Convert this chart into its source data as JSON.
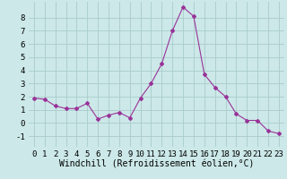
{
  "x": [
    0,
    1,
    2,
    3,
    4,
    5,
    6,
    7,
    8,
    9,
    10,
    11,
    12,
    13,
    14,
    15,
    16,
    17,
    18,
    19,
    20,
    21,
    22,
    23
  ],
  "y": [
    1.9,
    1.8,
    1.3,
    1.1,
    1.1,
    1.5,
    0.3,
    0.6,
    0.8,
    0.4,
    1.9,
    3.0,
    4.5,
    7.0,
    8.8,
    8.1,
    3.7,
    2.7,
    2.0,
    0.7,
    0.2,
    0.2,
    -0.6,
    -0.8
  ],
  "line_color": "#993399",
  "marker": "D",
  "marker_size": 2.0,
  "bg_color": "#cce8e8",
  "grid_color": "#aacccc",
  "xlabel": "Windchill (Refroidissement éolien,°C)",
  "xlabel_fontsize": 7,
  "tick_fontsize": 6.5,
  "xlim": [
    -0.5,
    23.5
  ],
  "ylim": [
    -1.8,
    9.2
  ],
  "yticks": [
    -1,
    0,
    1,
    2,
    3,
    4,
    5,
    6,
    7,
    8
  ],
  "xticks": [
    0,
    1,
    2,
    3,
    4,
    5,
    6,
    7,
    8,
    9,
    10,
    11,
    12,
    13,
    14,
    15,
    16,
    17,
    18,
    19,
    20,
    21,
    22,
    23
  ]
}
